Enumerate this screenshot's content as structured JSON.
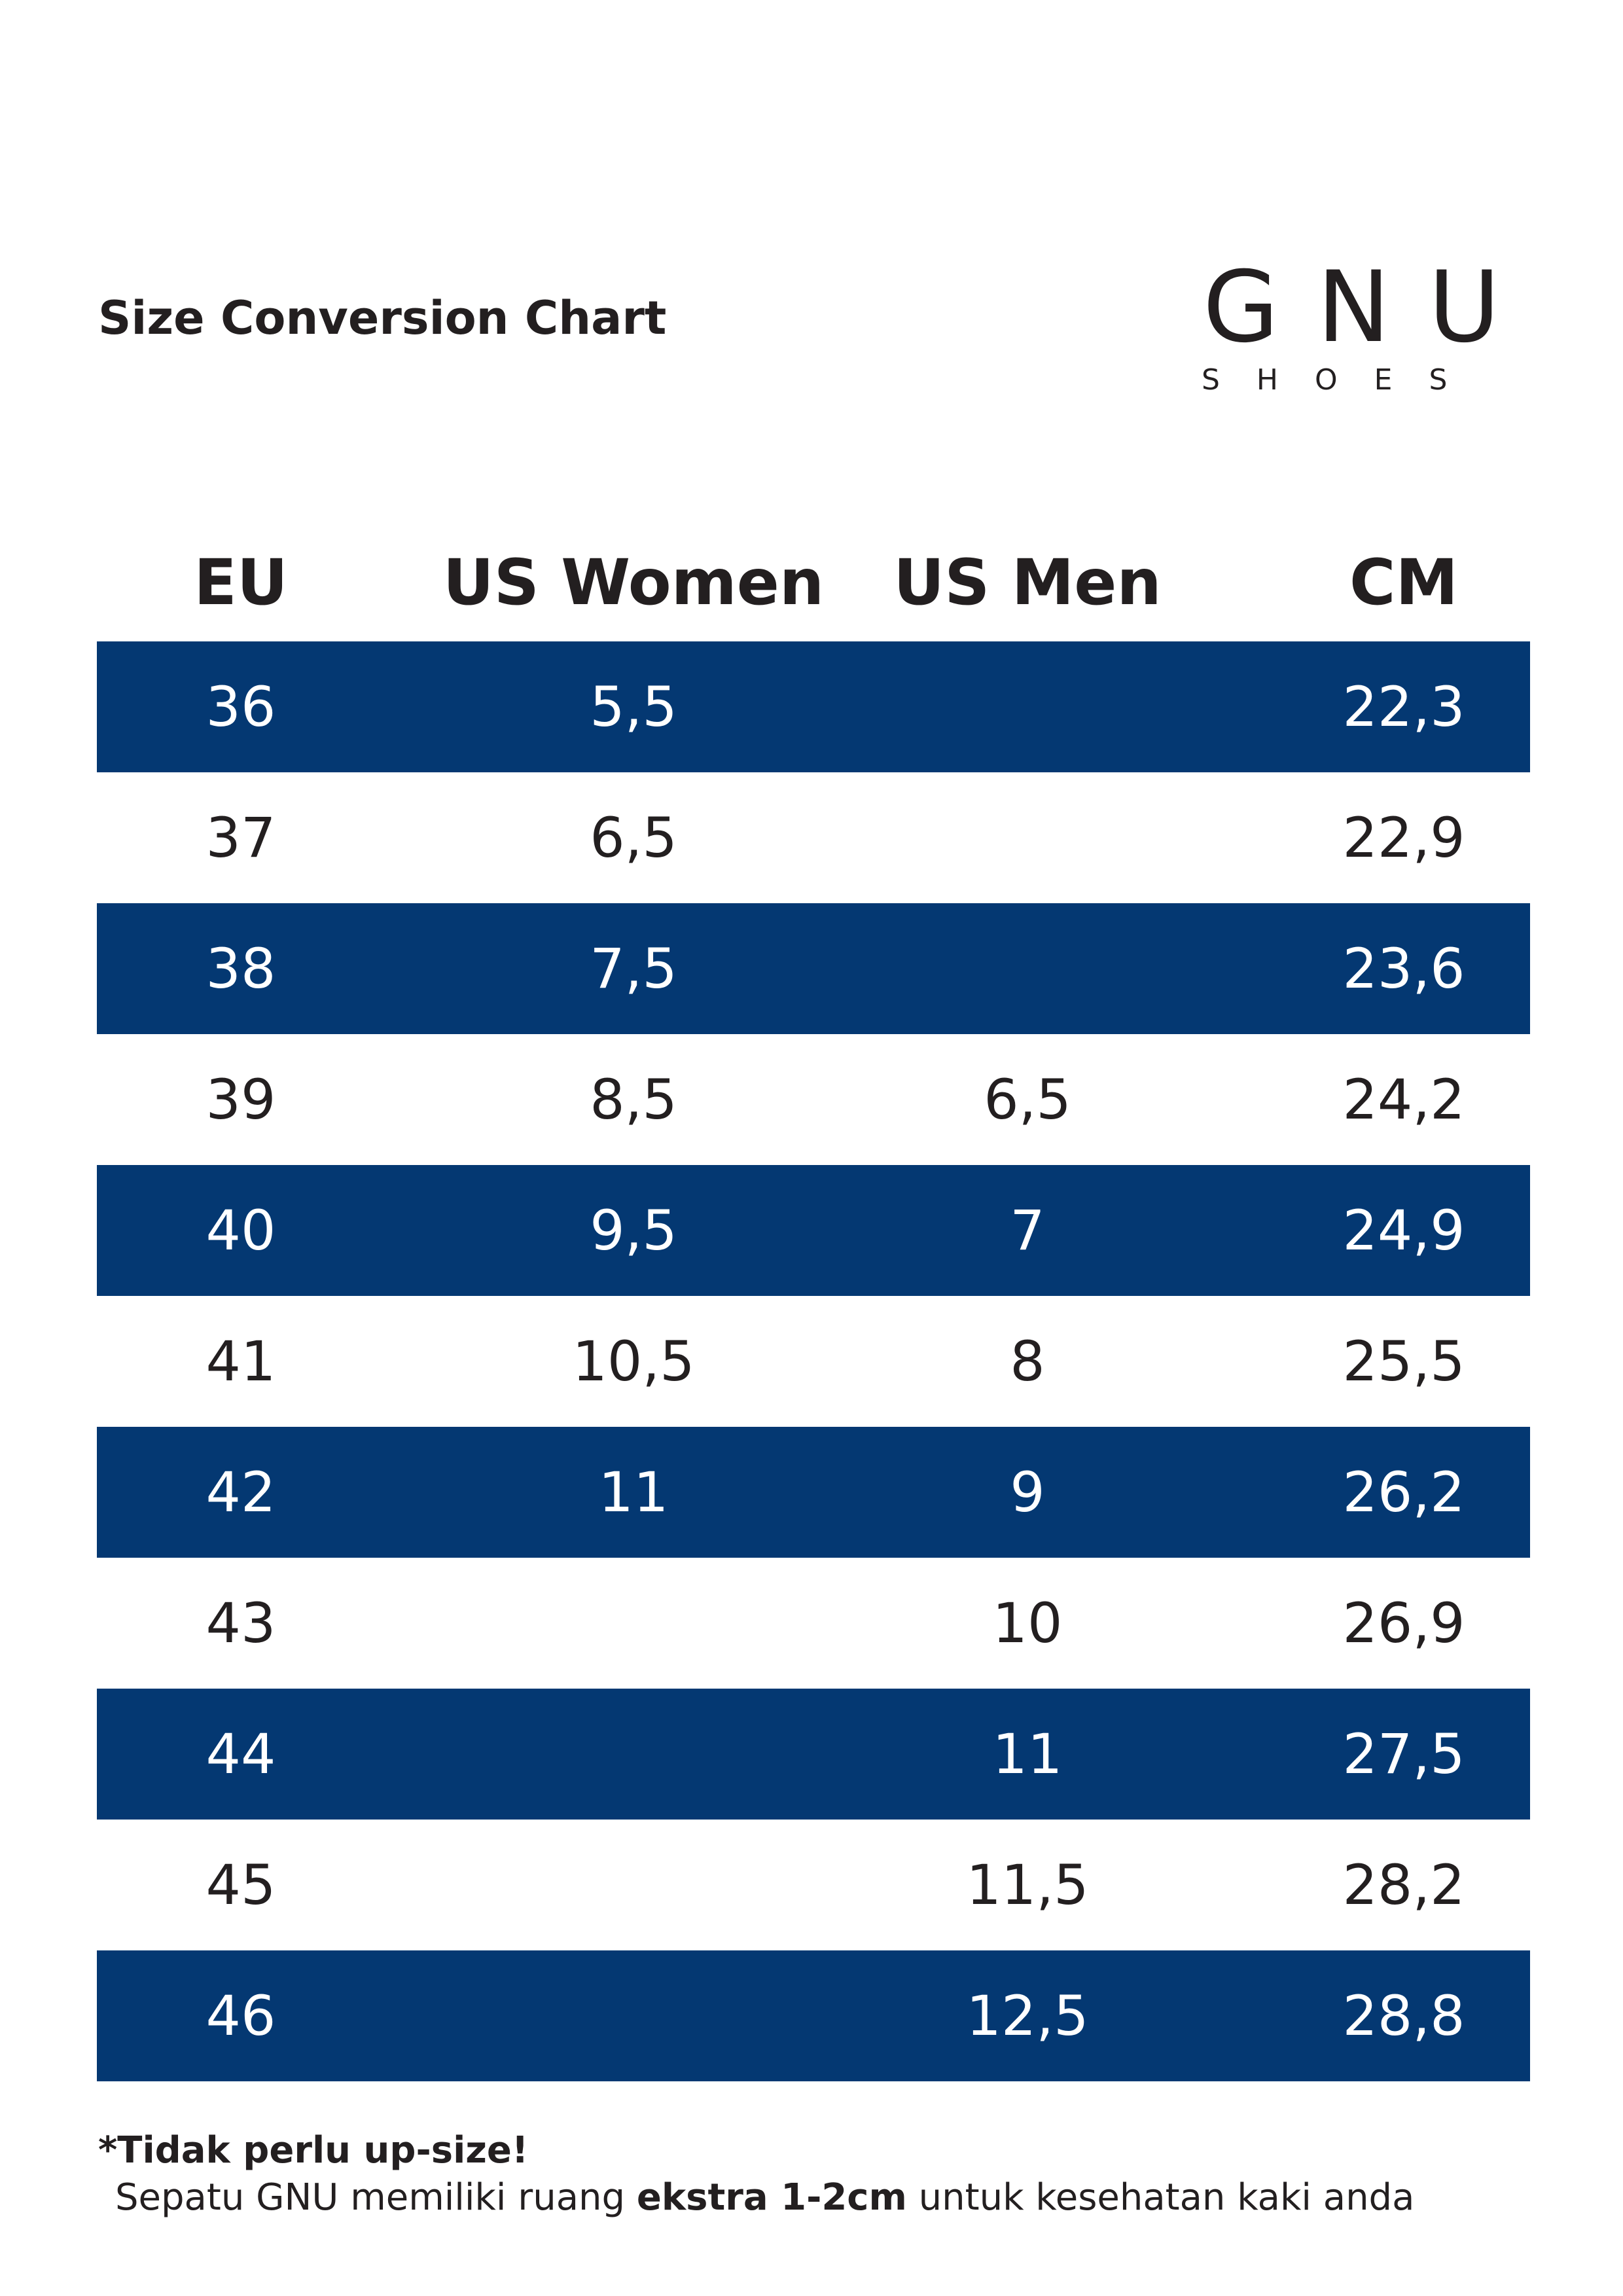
{
  "title": "Size Conversion Chart",
  "logo": {
    "main": "GNU",
    "sub": "SHOES"
  },
  "colors": {
    "row_dark": "#043872",
    "text_dark": "#231f20",
    "text_light": "#ffffff"
  },
  "table": {
    "headers": [
      "EU",
      "US Women",
      "US Men",
      "CM"
    ],
    "rows": [
      [
        "36",
        "5,5",
        "",
        "22,3"
      ],
      [
        "37",
        "6,5",
        "",
        "22,9"
      ],
      [
        "38",
        "7,5",
        "",
        "23,6"
      ],
      [
        "39",
        "8,5",
        "6,5",
        "24,2"
      ],
      [
        "40",
        "9,5",
        "7",
        "24,9"
      ],
      [
        "41",
        "10,5",
        "8",
        "25,5"
      ],
      [
        "42",
        "11",
        "9",
        "26,2"
      ],
      [
        "43",
        "",
        "10",
        "26,9"
      ],
      [
        "44",
        "",
        "11",
        "27,5"
      ],
      [
        "45",
        "",
        "11,5",
        "28,2"
      ],
      [
        "46",
        "",
        "12,5",
        "28,8"
      ]
    ]
  },
  "note": {
    "title": "*Tidak perlu up-size!",
    "line_prefix": "Sepatu GNU memiliki ruang ",
    "line_bold": "ekstra 1-2cm",
    "line_suffix": " untuk kesehatan kaki anda"
  }
}
